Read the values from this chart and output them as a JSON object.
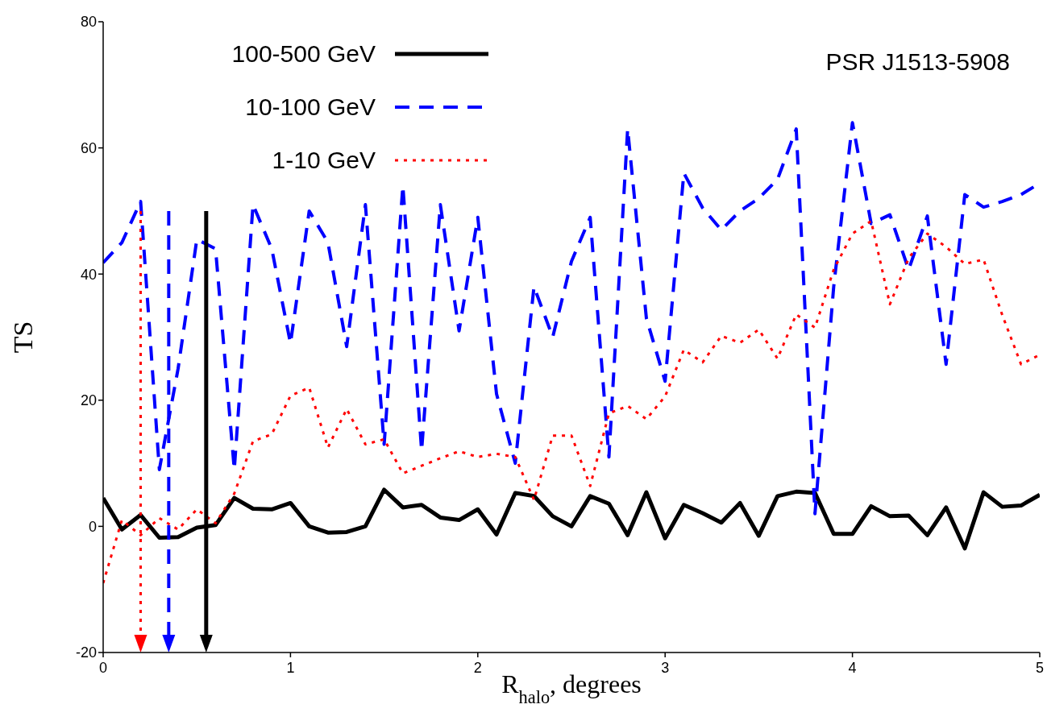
{
  "chart_data": {
    "type": "line",
    "xlabel": "R$_{halo}$, degrees",
    "ylabel": "TS",
    "annotations": [
      "PSR J1513-5908"
    ],
    "x": [
      0,
      0.1,
      0.2,
      0.3,
      0.4,
      0.5,
      0.6,
      0.7,
      0.8,
      0.9,
      1,
      1.1,
      1.2,
      1.3,
      1.4,
      1.5,
      1.6,
      1.7,
      1.8,
      1.9,
      2,
      2.1,
      2.2,
      2.3,
      2.4,
      2.5,
      2.6,
      2.7,
      2.8,
      2.9,
      3,
      3.1,
      3.2,
      3.3,
      3.4,
      3.5,
      3.6,
      3.7,
      3.8,
      3.9,
      4,
      4.1,
      4.2,
      4.3,
      4.4,
      4.5,
      4.6,
      4.7,
      4.8,
      4.9,
      5
    ],
    "series": [
      {
        "name": "100-500 GeV",
        "color": "#000000",
        "line_style": "solid",
        "values": [
          4.5,
          -0.5,
          1.8,
          -1.8,
          -1.7,
          -0.2,
          0.2,
          4.5,
          2.8,
          2.7,
          3.7,
          0,
          -1,
          -0.9,
          0,
          5.8,
          3,
          3.4,
          1.4,
          1,
          2.7,
          -1.3,
          5.3,
          4.8,
          1.6,
          0,
          4.8,
          3.6,
          -1.4,
          5.4,
          -1.9,
          3.4,
          2.1,
          0.6,
          3.7,
          -1.5,
          4.8,
          5.5,
          5.3,
          -1.2,
          -1.2,
          3.2,
          1.6,
          1.7,
          -1.4,
          3,
          -3.5,
          5.4,
          3.1,
          3.3,
          5
        ]
      },
      {
        "name": "10-100 GeV",
        "color": "#0000ff",
        "line_style": "dashed",
        "values": [
          41.8,
          45,
          51.5,
          9,
          25,
          45.5,
          44,
          9,
          51,
          44,
          29,
          50,
          45,
          28.5,
          51,
          13,
          54,
          12,
          51,
          31,
          49,
          21,
          10,
          38,
          30,
          42,
          49,
          11,
          63,
          33,
          23,
          56,
          50.5,
          47,
          50,
          52,
          55,
          63,
          2,
          38,
          64,
          48,
          49.4,
          40.7,
          49.2,
          25.7,
          52.6,
          50.6,
          51.5,
          52.6,
          54.4
        ]
      },
      {
        "name": "1-10 GeV",
        "color": "#ff0000",
        "line_style": "dotted",
        "values": [
          -9,
          1,
          -1.4,
          1.3,
          -0.5,
          2.7,
          0.5,
          5.2,
          13.5,
          14.6,
          20.7,
          22,
          12.5,
          18.6,
          13,
          13.8,
          8.4,
          9.6,
          10.8,
          11.9,
          11,
          11.5,
          11,
          4.2,
          14.4,
          14.4,
          6.4,
          17.9,
          19.1,
          17,
          20.6,
          28,
          26,
          30.2,
          29.1,
          31.2,
          26.6,
          33.6,
          31.5,
          40.7,
          46.4,
          48.4,
          35.2,
          42.5,
          46.4,
          44.3,
          41.6,
          42.3,
          33.5,
          25.7,
          27.2
        ]
      }
    ],
    "ref_lines": [
      {
        "axis": "x",
        "value": 0.2,
        "color": "#ff0000",
        "line_style": "dotted"
      },
      {
        "axis": "x",
        "value": 0.35,
        "color": "#0000ff",
        "line_style": "dashed"
      },
      {
        "axis": "x",
        "value": 0.55,
        "color": "#000000",
        "line_style": "solid"
      }
    ],
    "xlim": [
      0,
      5
    ],
    "xticks": [
      0,
      1,
      2,
      3,
      4,
      5
    ],
    "ylim": [
      -20,
      80
    ],
    "yticks": [
      -20,
      0,
      20,
      40,
      60,
      80
    ],
    "grid": false,
    "legend": "top left",
    "marker": "none"
  }
}
